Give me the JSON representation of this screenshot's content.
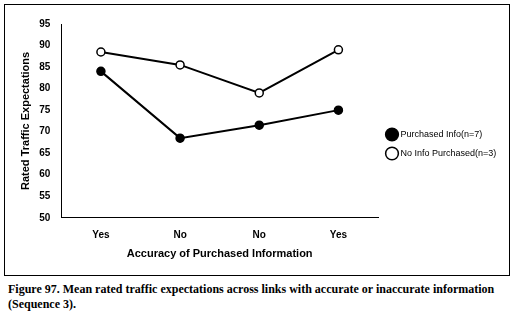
{
  "chart_data": {
    "type": "line",
    "title": "Figure 97.  Mean rated traffic expectations across links with accurate or inaccurate information (Sequence 3).",
    "x_label": "Accuracy of Purchased Information",
    "y_label": "Rated Traffic Expectations",
    "categories": [
      "Yes",
      "No",
      "No",
      "Yes"
    ],
    "series": [
      {
        "name": "Purchased Info(n=7)",
        "color": "#000000",
        "marker": "filled_circle",
        "values": [
          84,
          68.5,
          71.5,
          75
        ]
      },
      {
        "name": "No Info Purchased(n=3)",
        "color": "#000000",
        "marker": "open_circle",
        "values": [
          88.5,
          85.5,
          79,
          89
        ]
      }
    ],
    "ylim": [
      50,
      95
    ],
    "yticks": [
      50,
      55,
      60,
      65,
      70,
      75,
      80,
      85,
      90,
      95
    ],
    "grid": false,
    "legend": "right"
  }
}
